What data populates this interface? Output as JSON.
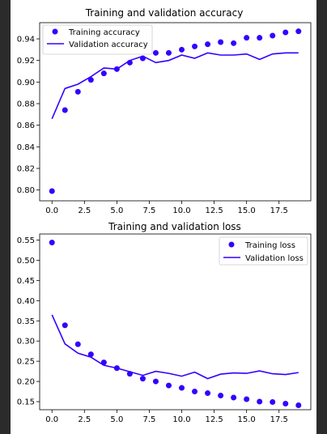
{
  "colors": {
    "series": "#3300ff",
    "panel_bg": "#2b2b2b",
    "figure_bg": "#ffffff"
  },
  "chart_data": [
    {
      "type": "scatter",
      "title": "Training and validation accuracy",
      "xlabel": "",
      "ylabel": "",
      "xlim": [
        -0.95,
        19.95
      ],
      "ylim": [
        0.79,
        0.955
      ],
      "xticks": [
        "0.0",
        "2.5",
        "5.0",
        "7.5",
        "10.0",
        "12.5",
        "15.0",
        "17.5"
      ],
      "yticks": [
        "0.80",
        "0.82",
        "0.84",
        "0.86",
        "0.88",
        "0.90",
        "0.92",
        "0.94"
      ],
      "grid": false,
      "legend_position": "top-left",
      "x": [
        0,
        1,
        2,
        3,
        4,
        5,
        6,
        7,
        8,
        9,
        10,
        11,
        12,
        13,
        14,
        15,
        16,
        17,
        18,
        19
      ],
      "series": [
        {
          "name": "Training accuracy",
          "kind": "points",
          "values": [
            0.799,
            0.874,
            0.891,
            0.902,
            0.908,
            0.912,
            0.918,
            0.922,
            0.927,
            0.927,
            0.93,
            0.933,
            0.935,
            0.937,
            0.936,
            0.941,
            0.941,
            0.943,
            0.946,
            0.947
          ]
        },
        {
          "name": "Validation accuracy",
          "kind": "line",
          "values": [
            0.866,
            0.894,
            0.898,
            0.905,
            0.913,
            0.912,
            0.92,
            0.924,
            0.918,
            0.92,
            0.925,
            0.922,
            0.927,
            0.925,
            0.925,
            0.926,
            0.921,
            0.926,
            0.927,
            0.927
          ]
        }
      ]
    },
    {
      "type": "scatter",
      "title": "Training and validation loss",
      "xlabel": "",
      "ylabel": "",
      "xlim": [
        -0.95,
        19.95
      ],
      "ylim": [
        0.13,
        0.565
      ],
      "xticks": [
        "0.0",
        "2.5",
        "5.0",
        "7.5",
        "10.0",
        "12.5",
        "15.0",
        "17.5"
      ],
      "yticks": [
        "0.15",
        "0.20",
        "0.25",
        "0.30",
        "0.35",
        "0.40",
        "0.45",
        "0.50",
        "0.55"
      ],
      "grid": false,
      "legend_position": "top-right",
      "x": [
        0,
        1,
        2,
        3,
        4,
        5,
        6,
        7,
        8,
        9,
        10,
        11,
        12,
        13,
        14,
        15,
        16,
        17,
        18,
        19
      ],
      "series": [
        {
          "name": "Training loss",
          "kind": "points",
          "values": [
            0.544,
            0.339,
            0.292,
            0.267,
            0.247,
            0.233,
            0.219,
            0.207,
            0.2,
            0.19,
            0.184,
            0.175,
            0.171,
            0.165,
            0.16,
            0.156,
            0.15,
            0.149,
            0.145,
            0.141
          ]
        },
        {
          "name": "Validation loss",
          "kind": "line",
          "values": [
            0.365,
            0.293,
            0.27,
            0.26,
            0.24,
            0.233,
            0.224,
            0.215,
            0.225,
            0.22,
            0.213,
            0.223,
            0.207,
            0.218,
            0.221,
            0.22,
            0.226,
            0.219,
            0.217,
            0.222
          ]
        }
      ]
    }
  ]
}
